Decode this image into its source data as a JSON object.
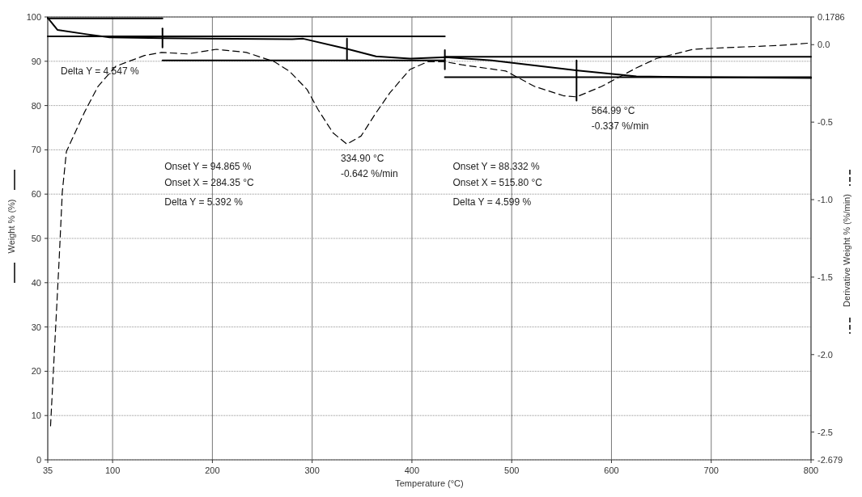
{
  "chart_data": {
    "type": "line",
    "xlabel": "Temperature (°C)",
    "ylabel": "Weight % (%)",
    "y2label": "Derivative Weight % (%/min)",
    "xlim": [
      35,
      800
    ],
    "xticks": [
      35,
      100,
      200,
      300,
      400,
      500,
      600,
      700,
      800
    ],
    "ylim": [
      0,
      100
    ],
    "yticks": [
      0,
      10,
      20,
      30,
      40,
      50,
      60,
      70,
      80,
      90,
      100
    ],
    "y2lim": [
      -2.679,
      0.1786
    ],
    "y2ticks": [
      0.1786,
      {
        "value": 0,
        "label": "0.0"
      },
      -0.5,
      {
        "value": -1,
        "label": "-1.0"
      },
      -1.5,
      {
        "value": -2,
        "label": "-2.0"
      },
      -2.5,
      -2.679
    ],
    "grid": true,
    "marker": "none",
    "series": [
      {
        "color": "#000000",
        "line_style": "solid",
        "x": [
          35,
          44.7,
          74,
          97,
          150,
          280,
          291,
          335,
          364,
          398,
          434,
          480,
          566,
          625,
          680,
          800
        ],
        "values": [
          99.8,
          97.1,
          96.1,
          95.4,
          95.2,
          95.0,
          95.1,
          92.8,
          91.1,
          90.6,
          90.9,
          90.2,
          87.9,
          86.6,
          86.4,
          86.2
        ]
      },
      {
        "color": "#000000",
        "line_style": "dashed",
        "axis": "y2",
        "x": [
          37.8,
          46.4,
          49.6,
          53.7,
          71.5,
          85.3,
          103,
          132,
          149,
          175,
          204,
          234,
          262,
          277,
          295,
          306,
          321,
          334.9,
          349,
          364,
          378,
          398,
          416,
          433,
          450,
          494,
          523,
          552,
          564.99,
          590,
          625,
          645,
          682,
          712,
          769,
          798
        ],
        "values": [
          -2.46,
          -1.39,
          -0.95,
          -0.69,
          -0.44,
          -0.27,
          -0.14,
          -0.07,
          -0.05,
          -0.06,
          -0.03,
          -0.05,
          -0.11,
          -0.17,
          -0.29,
          -0.42,
          -0.57,
          -0.642,
          -0.59,
          -0.44,
          -0.31,
          -0.16,
          -0.11,
          -0.11,
          -0.13,
          -0.17,
          -0.27,
          -0.33,
          -0.337,
          -0.27,
          -0.15,
          -0.09,
          -0.03,
          -0.02,
          -0.005,
          0.01
        ]
      },
      {
        "color": "#000000",
        "line_style": "solid",
        "x": [
          35,
          150
        ],
        "values": [
          99.7,
          99.7
        ]
      },
      {
        "color": "#000000",
        "line_style": "solid",
        "x": [
          35,
          433
        ],
        "values": [
          95.6,
          95.6
        ]
      },
      {
        "color": "#000000",
        "line_style": "solid",
        "x": [
          150,
          433
        ],
        "values": [
          90.2,
          90.2
        ]
      },
      {
        "color": "#000000",
        "line_style": "solid",
        "x": [
          433,
          800
        ],
        "values": [
          91.0,
          91.0
        ]
      },
      {
        "color": "#000000",
        "line_style": "solid",
        "x": [
          433,
          800
        ],
        "values": [
          86.4,
          86.4
        ]
      },
      {
        "color": "#000000",
        "line_style": "solid",
        "x": [
          150,
          150
        ],
        "values": [
          93.1,
          97.4
        ]
      },
      {
        "color": "#000000",
        "line_style": "solid",
        "x": [
          334.9,
          334.9
        ],
        "values": [
          90.3,
          95.1
        ]
      },
      {
        "color": "#000000",
        "line_style": "solid",
        "x": [
          433,
          433
        ],
        "values": [
          88.2,
          92.5
        ]
      },
      {
        "color": "#000000",
        "line_style": "solid",
        "x": [
          564.99,
          564.99
        ],
        "values": [
          81.1,
          90.2
        ]
      }
    ],
    "annotations": [
      "Delta Y = 4.547 %",
      "Onset Y = 94.865 %",
      "Onset X = 284.35 °C",
      "Delta Y = 5.392 %",
      "334.90 °C",
      "-0.642 %/min",
      "Onset Y = 88.332 %",
      "Onset X = 515.80 °C",
      "Delta Y = 4.599 %",
      "564.99 °C",
      "-0.337 %/min"
    ]
  }
}
